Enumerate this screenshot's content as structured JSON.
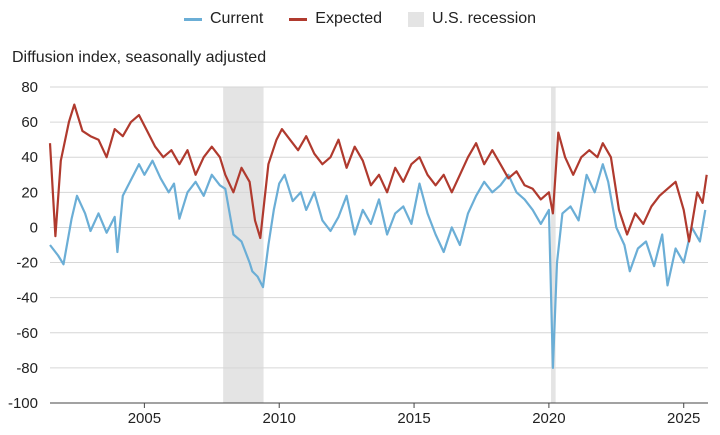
{
  "colors": {
    "current": "#6baed6",
    "expected": "#b03a2e",
    "recession": "#e4e4e4",
    "grid": "#d6d6d6"
  },
  "chart_data": {
    "type": "line",
    "title": "",
    "xlabel": "",
    "ylabel": "Diffusion index, seasonally adjusted",
    "xlim": [
      2001.5,
      2025.9
    ],
    "ylim": [
      -100,
      80
    ],
    "yticks": [
      80,
      60,
      40,
      20,
      0,
      -20,
      -40,
      -60,
      -80,
      -100
    ],
    "xticks": [
      2005,
      2010,
      2015,
      2020,
      2025
    ],
    "legend": [
      {
        "key": "current",
        "label": "Current",
        "kind": "line"
      },
      {
        "key": "expected",
        "label": "Expected",
        "kind": "line"
      },
      {
        "key": "recession",
        "label": "U.S. recession",
        "kind": "band"
      }
    ],
    "recessions": [
      [
        2007.92,
        2009.42
      ],
      [
        2020.08,
        2020.25
      ]
    ],
    "series": [
      {
        "name": "Current",
        "key": "current",
        "points": [
          [
            2001.5,
            -10
          ],
          [
            2001.8,
            -16
          ],
          [
            2002.0,
            -21
          ],
          [
            2002.3,
            5
          ],
          [
            2002.5,
            18
          ],
          [
            2002.8,
            8
          ],
          [
            2003.0,
            -2
          ],
          [
            2003.3,
            8
          ],
          [
            2003.6,
            -3
          ],
          [
            2003.9,
            6
          ],
          [
            2004.0,
            -14
          ],
          [
            2004.2,
            18
          ],
          [
            2004.5,
            27
          ],
          [
            2004.8,
            36
          ],
          [
            2005.0,
            30
          ],
          [
            2005.3,
            38
          ],
          [
            2005.6,
            28
          ],
          [
            2005.9,
            20
          ],
          [
            2006.1,
            25
          ],
          [
            2006.3,
            5
          ],
          [
            2006.6,
            20
          ],
          [
            2006.9,
            26
          ],
          [
            2007.2,
            18
          ],
          [
            2007.5,
            30
          ],
          [
            2007.8,
            24
          ],
          [
            2008.0,
            22
          ],
          [
            2008.3,
            -4
          ],
          [
            2008.6,
            -8
          ],
          [
            2008.9,
            -20
          ],
          [
            2009.0,
            -25
          ],
          [
            2009.2,
            -28
          ],
          [
            2009.4,
            -34
          ],
          [
            2009.6,
            -10
          ],
          [
            2009.8,
            10
          ],
          [
            2010.0,
            25
          ],
          [
            2010.2,
            30
          ],
          [
            2010.5,
            15
          ],
          [
            2010.8,
            20
          ],
          [
            2011.0,
            10
          ],
          [
            2011.3,
            20
          ],
          [
            2011.6,
            4
          ],
          [
            2011.9,
            -2
          ],
          [
            2012.2,
            6
          ],
          [
            2012.5,
            18
          ],
          [
            2012.8,
            -4
          ],
          [
            2013.1,
            10
          ],
          [
            2013.4,
            2
          ],
          [
            2013.7,
            16
          ],
          [
            2014.0,
            -4
          ],
          [
            2014.3,
            8
          ],
          [
            2014.6,
            12
          ],
          [
            2014.9,
            2
          ],
          [
            2015.2,
            25
          ],
          [
            2015.5,
            8
          ],
          [
            2015.8,
            -4
          ],
          [
            2016.1,
            -14
          ],
          [
            2016.4,
            0
          ],
          [
            2016.7,
            -10
          ],
          [
            2017.0,
            8
          ],
          [
            2017.3,
            18
          ],
          [
            2017.6,
            26
          ],
          [
            2017.9,
            20
          ],
          [
            2018.2,
            24
          ],
          [
            2018.5,
            30
          ],
          [
            2018.8,
            20
          ],
          [
            2019.1,
            16
          ],
          [
            2019.4,
            10
          ],
          [
            2019.7,
            2
          ],
          [
            2020.0,
            10
          ],
          [
            2020.15,
            -80
          ],
          [
            2020.3,
            -20
          ],
          [
            2020.5,
            8
          ],
          [
            2020.8,
            12
          ],
          [
            2021.1,
            4
          ],
          [
            2021.4,
            30
          ],
          [
            2021.7,
            20
          ],
          [
            2022.0,
            36
          ],
          [
            2022.2,
            26
          ],
          [
            2022.5,
            0
          ],
          [
            2022.8,
            -10
          ],
          [
            2023.0,
            -25
          ],
          [
            2023.3,
            -12
          ],
          [
            2023.6,
            -8
          ],
          [
            2023.9,
            -22
          ],
          [
            2024.2,
            -4
          ],
          [
            2024.4,
            -33
          ],
          [
            2024.7,
            -12
          ],
          [
            2025.0,
            -20
          ],
          [
            2025.3,
            0
          ],
          [
            2025.6,
            -8
          ],
          [
            2025.8,
            10
          ]
        ]
      },
      {
        "name": "Expected",
        "key": "expected",
        "points": [
          [
            2001.5,
            48
          ],
          [
            2001.7,
            -5
          ],
          [
            2001.9,
            38
          ],
          [
            2002.2,
            60
          ],
          [
            2002.4,
            70
          ],
          [
            2002.7,
            55
          ],
          [
            2003.0,
            52
          ],
          [
            2003.3,
            50
          ],
          [
            2003.6,
            40
          ],
          [
            2003.9,
            56
          ],
          [
            2004.2,
            52
          ],
          [
            2004.5,
            60
          ],
          [
            2004.8,
            64
          ],
          [
            2005.1,
            55
          ],
          [
            2005.4,
            46
          ],
          [
            2005.7,
            40
          ],
          [
            2006.0,
            44
          ],
          [
            2006.3,
            36
          ],
          [
            2006.6,
            44
          ],
          [
            2006.9,
            30
          ],
          [
            2007.2,
            40
          ],
          [
            2007.5,
            46
          ],
          [
            2007.8,
            40
          ],
          [
            2008.0,
            30
          ],
          [
            2008.3,
            20
          ],
          [
            2008.6,
            34
          ],
          [
            2008.9,
            26
          ],
          [
            2009.1,
            4
          ],
          [
            2009.3,
            -6
          ],
          [
            2009.6,
            36
          ],
          [
            2009.9,
            50
          ],
          [
            2010.1,
            56
          ],
          [
            2010.4,
            50
          ],
          [
            2010.7,
            44
          ],
          [
            2011.0,
            52
          ],
          [
            2011.3,
            42
          ],
          [
            2011.6,
            36
          ],
          [
            2011.9,
            40
          ],
          [
            2012.2,
            50
          ],
          [
            2012.5,
            34
          ],
          [
            2012.8,
            46
          ],
          [
            2013.1,
            38
          ],
          [
            2013.4,
            24
          ],
          [
            2013.7,
            30
          ],
          [
            2014.0,
            20
          ],
          [
            2014.3,
            34
          ],
          [
            2014.6,
            26
          ],
          [
            2014.9,
            36
          ],
          [
            2015.2,
            40
          ],
          [
            2015.5,
            30
          ],
          [
            2015.8,
            24
          ],
          [
            2016.1,
            30
          ],
          [
            2016.4,
            20
          ],
          [
            2016.7,
            30
          ],
          [
            2017.0,
            40
          ],
          [
            2017.3,
            48
          ],
          [
            2017.6,
            36
          ],
          [
            2017.9,
            44
          ],
          [
            2018.2,
            36
          ],
          [
            2018.5,
            28
          ],
          [
            2018.8,
            32
          ],
          [
            2019.1,
            24
          ],
          [
            2019.4,
            22
          ],
          [
            2019.7,
            16
          ],
          [
            2020.0,
            20
          ],
          [
            2020.15,
            8
          ],
          [
            2020.35,
            54
          ],
          [
            2020.6,
            40
          ],
          [
            2020.9,
            30
          ],
          [
            2021.2,
            40
          ],
          [
            2021.5,
            44
          ],
          [
            2021.8,
            40
          ],
          [
            2022.0,
            48
          ],
          [
            2022.3,
            40
          ],
          [
            2022.6,
            10
          ],
          [
            2022.9,
            -4
          ],
          [
            2023.2,
            8
          ],
          [
            2023.5,
            2
          ],
          [
            2023.8,
            12
          ],
          [
            2024.1,
            18
          ],
          [
            2024.4,
            22
          ],
          [
            2024.7,
            26
          ],
          [
            2025.0,
            10
          ],
          [
            2025.2,
            -8
          ],
          [
            2025.5,
            20
          ],
          [
            2025.7,
            14
          ],
          [
            2025.85,
            30
          ]
        ]
      }
    ]
  }
}
